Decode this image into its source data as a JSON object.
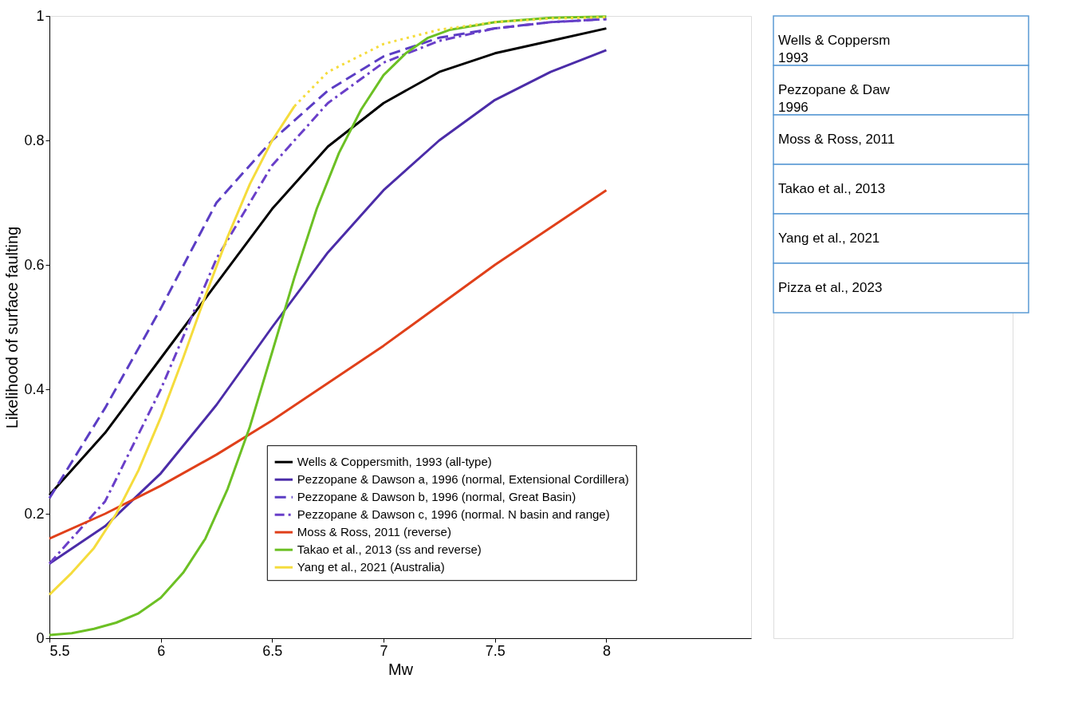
{
  "chart_data": {
    "type": "line",
    "xlabel": "Mw",
    "ylabel": "Likelihood of surface faulting",
    "xlim": [
      5.5,
      8.65
    ],
    "xticks": [
      5.5,
      6,
      6.5,
      7,
      7.5,
      8
    ],
    "ylim": [
      0,
      1
    ],
    "yticks": [
      0,
      0.2,
      0.4,
      0.6,
      0.8,
      1
    ],
    "grid": false,
    "legend": "bottom right",
    "marker": "none",
    "series": [
      {
        "name": "Wells & Coppersmith, 1993 (all-type)",
        "color": "#000000",
        "line_style": "solid",
        "x": [
          5.5,
          5.75,
          6.0,
          6.25,
          6.5,
          6.75,
          7.0,
          7.25,
          7.5,
          7.75,
          8.0
        ],
        "values": [
          0.23,
          0.33,
          0.45,
          0.57,
          0.69,
          0.79,
          0.86,
          0.91,
          0.94,
          0.96,
          0.98
        ]
      },
      {
        "name": "Pezzopane & Dawson a, 1996 (normal, Extensional Cordillera)",
        "color": "#4b2ca8",
        "line_style": "solid",
        "x": [
          5.5,
          5.75,
          6.0,
          6.25,
          6.5,
          6.75,
          7.0,
          7.25,
          7.5,
          7.75,
          8.0
        ],
        "values": [
          0.12,
          0.18,
          0.265,
          0.375,
          0.5,
          0.62,
          0.72,
          0.8,
          0.865,
          0.91,
          0.945
        ]
      },
      {
        "name": "Pezzopane & Dawson b, 1996 (normal, Great Basin)",
        "color": "#5b3dc4",
        "line_style": "dashed",
        "x": [
          5.5,
          5.75,
          6.0,
          6.25,
          6.5,
          6.75,
          7.0,
          7.25,
          7.5,
          7.75,
          8.0
        ],
        "values": [
          0.225,
          0.37,
          0.53,
          0.7,
          0.8,
          0.88,
          0.935,
          0.965,
          0.98,
          0.99,
          0.995
        ]
      },
      {
        "name": "Pezzopane & Dawson c, 1996 (normal. N basin and range)",
        "color": "#6a3fc9",
        "line_style": "dashdot",
        "x": [
          5.5,
          5.75,
          6.0,
          6.25,
          6.5,
          6.75,
          7.0,
          7.25,
          7.5,
          7.75,
          8.0
        ],
        "values": [
          0.12,
          0.22,
          0.4,
          0.61,
          0.76,
          0.86,
          0.925,
          0.96,
          0.98,
          0.99,
          0.995
        ]
      },
      {
        "name": "Moss & Ross, 2011 (reverse)",
        "color": "#e0401a",
        "line_style": "solid",
        "x": [
          5.5,
          5.75,
          6.0,
          6.25,
          6.5,
          6.75,
          7.0,
          7.25,
          7.5,
          7.75,
          8.0
        ],
        "values": [
          0.16,
          0.2,
          0.245,
          0.295,
          0.35,
          0.41,
          0.47,
          0.535,
          0.6,
          0.66,
          0.72
        ]
      },
      {
        "name": "Takao et al., 2013 (ss and reverse)",
        "color": "#6cc024",
        "line_style": "solid",
        "x": [
          5.5,
          5.6,
          5.7,
          5.8,
          5.9,
          6.0,
          6.1,
          6.2,
          6.3,
          6.4,
          6.5,
          6.6,
          6.7,
          6.8,
          6.9,
          7.0,
          7.1,
          7.2,
          7.3,
          7.5,
          7.75,
          8.0
        ],
        "values": [
          0.005,
          0.008,
          0.015,
          0.025,
          0.04,
          0.065,
          0.105,
          0.16,
          0.24,
          0.34,
          0.46,
          0.58,
          0.69,
          0.78,
          0.85,
          0.905,
          0.94,
          0.965,
          0.978,
          0.99,
          0.997,
          0.999
        ]
      },
      {
        "name": "Yang et al., 2021 (Australia)",
        "color": "#f5dc3c",
        "line_style": "solid",
        "x": [
          5.5,
          5.6,
          5.7,
          5.8,
          5.9,
          6.0,
          6.1,
          6.2,
          6.3,
          6.4,
          6.5,
          6.6
        ],
        "values": [
          0.07,
          0.105,
          0.145,
          0.2,
          0.27,
          0.355,
          0.45,
          0.55,
          0.645,
          0.73,
          0.8,
          0.855
        ]
      },
      {
        "color": "#f5dc3c",
        "line_style": "dotted",
        "x": [
          6.6,
          6.75,
          7.0,
          7.25,
          7.5,
          7.75,
          8.0
        ],
        "values": [
          0.855,
          0.91,
          0.955,
          0.978,
          0.99,
          0.996,
          0.998
        ]
      }
    ],
    "annotations": [
      " Wells & Coppersm\n1993",
      "Pezzopane & Daw\n1996",
      "Moss & Ross, 2011",
      "Takao et al., 2013",
      "Yang et al., 2021",
      "Pizza et al., 2023"
    ]
  }
}
